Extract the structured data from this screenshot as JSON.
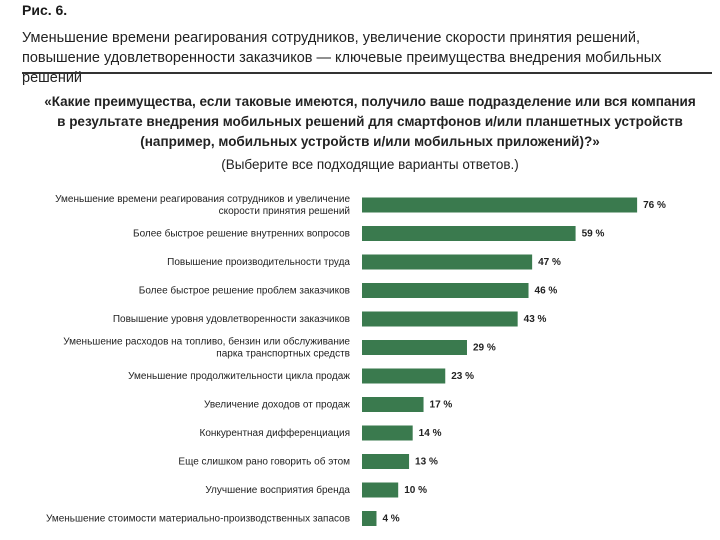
{
  "figure": {
    "label": "Рис. 6.",
    "caption": "Уменьшение времени реагирования сотрудников, увеличение скорости принятия решений, повышение удовлетворенности заказчиков — ключевые преимущества внедрения мобильных решений"
  },
  "question": "«Какие преимущества, если таковые имеются, получило ваше подразделение или вся компания в результате внедрения мобильных решений для смартфонов и/или планшетных устройств (например, мобильных устройств и/или мобильных приложений)?»",
  "note": "(Выберите все подходящие варианты ответов.)",
  "colors": {
    "bar": "#3a7a4e",
    "text": "#222222"
  },
  "chart_data": {
    "type": "bar",
    "orientation": "horizontal",
    "categories": [
      [
        "Уменьшение времени реагирования сотрудников и увеличение",
        "скорости принятия решений"
      ],
      [
        "Более быстрое решение внутренних вопросов"
      ],
      [
        "Повышение производительности труда"
      ],
      [
        "Более быстрое решение проблем заказчиков"
      ],
      [
        "Повышение уровня удовлетворенности заказчиков"
      ],
      [
        "Уменьшение расходов на топливо, бензин или обслуживание",
        "парка транспортных средств"
      ],
      [
        "Уменьшение продолжительности цикла продаж"
      ],
      [
        "Увеличение доходов от продаж"
      ],
      [
        "Конкурентная дифференциация"
      ],
      [
        "Еще слишком рано говорить об этом"
      ],
      [
        "Улучшение восприятия бренда"
      ],
      [
        "Уменьшение стоимости материально-производственных запасов"
      ]
    ],
    "values": [
      76,
      59,
      47,
      46,
      43,
      29,
      23,
      17,
      14,
      13,
      10,
      4
    ],
    "value_labels": [
      "76 %",
      "59 %",
      "47 %",
      "46 %",
      "43 %",
      "29 %",
      "23 %",
      "17 %",
      "14 %",
      "13 %",
      "10 %",
      "4 %"
    ],
    "unit": "%",
    "xlim": [
      0,
      100
    ],
    "grid": false,
    "legend": "none"
  }
}
